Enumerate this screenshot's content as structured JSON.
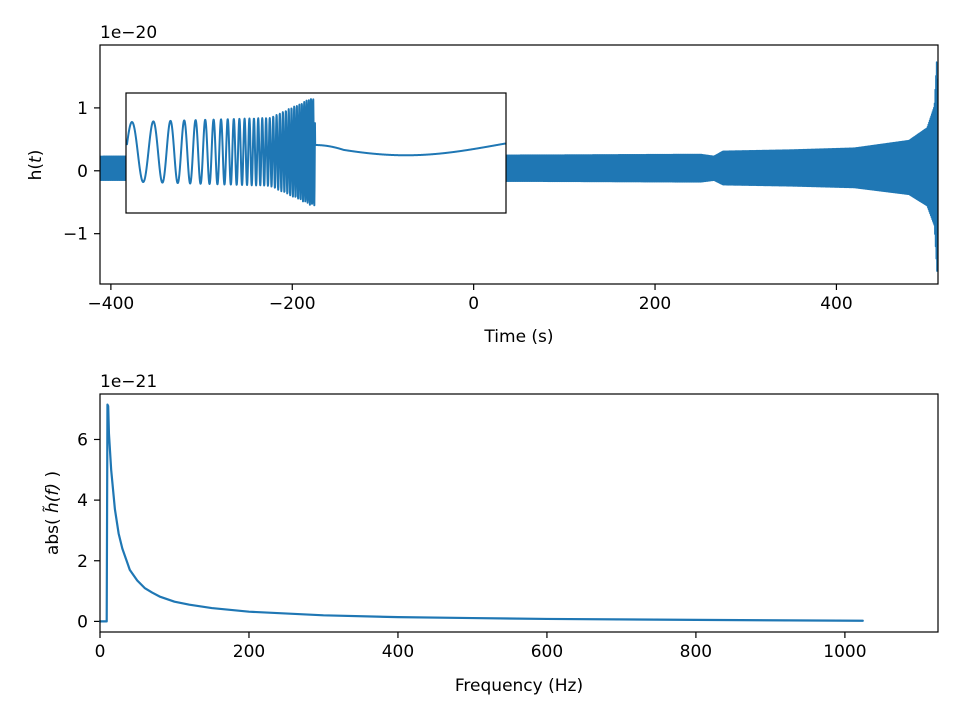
{
  "palette": {
    "series_color": "#1f77b4",
    "frame_color": "#000000",
    "background": "#ffffff"
  },
  "chart_data": [
    {
      "type": "line",
      "title": "",
      "xlabel": "Time (s)",
      "ylabel_prefix": "h(",
      "ylabel_var": "t",
      "ylabel_suffix": ")",
      "y_offset_text": "1e−20",
      "xlim": [
        -412,
        512
      ],
      "ylim": [
        -1.8,
        2.0
      ],
      "xticks": [
        -400,
        -200,
        0,
        200,
        400
      ],
      "xtick_labels": [
        "−400",
        "−200",
        "0",
        "200",
        "400"
      ],
      "yticks": [
        -1,
        0,
        1
      ],
      "ytick_labels": [
        "−1",
        "0",
        "1"
      ],
      "grid": false,
      "legend": "none",
      "envelope": [
        {
          "x": -412,
          "amp": 0.2
        },
        {
          "x": 100,
          "amp": 0.22
        },
        {
          "x": 250,
          "amp": 0.23
        },
        {
          "x": 265,
          "amp": 0.2
        },
        {
          "x": 275,
          "amp": 0.28
        },
        {
          "x": 350,
          "amp": 0.3
        },
        {
          "x": 420,
          "amp": 0.33
        },
        {
          "x": 480,
          "amp": 0.45
        },
        {
          "x": 500,
          "amp": 0.65
        },
        {
          "x": 508,
          "amp": 1.0
        },
        {
          "x": 511,
          "amp": 1.85
        },
        {
          "x": 512,
          "amp": 0.0
        }
      ],
      "inset": {
        "description_free": true,
        "xlim": [
          0,
          1
        ],
        "ylim": [
          -1.0,
          1.0
        ],
        "show_ticks": false
      }
    },
    {
      "type": "line",
      "title": "",
      "xlabel": "Frequency (Hz)",
      "ylabel_prefix": "abs( ",
      "ylabel_var": "h̃(f)",
      "ylabel_suffix": " )",
      "y_offset_text": "1e−21",
      "xlim": [
        0,
        1125
      ],
      "ylim": [
        -0.35,
        7.5
      ],
      "xticks": [
        0,
        200,
        400,
        600,
        800,
        1000
      ],
      "xtick_labels": [
        "0",
        "200",
        "400",
        "600",
        "800",
        "1000"
      ],
      "yticks": [
        0,
        2,
        4,
        6
      ],
      "ytick_labels": [
        "0",
        "2",
        "4",
        "6"
      ],
      "grid": false,
      "legend": "none",
      "x": [
        0,
        9,
        10,
        11,
        12,
        15,
        20,
        25,
        30,
        40,
        50,
        60,
        70,
        80,
        100,
        120,
        150,
        200,
        300,
        400,
        500,
        600,
        800,
        1024
      ],
      "y": [
        0,
        0,
        7.15,
        7.1,
        6.2,
        5.0,
        3.7,
        2.9,
        2.4,
        1.7,
        1.35,
        1.1,
        0.95,
        0.82,
        0.65,
        0.55,
        0.44,
        0.32,
        0.2,
        0.14,
        0.11,
        0.08,
        0.05,
        0.02
      ]
    }
  ]
}
